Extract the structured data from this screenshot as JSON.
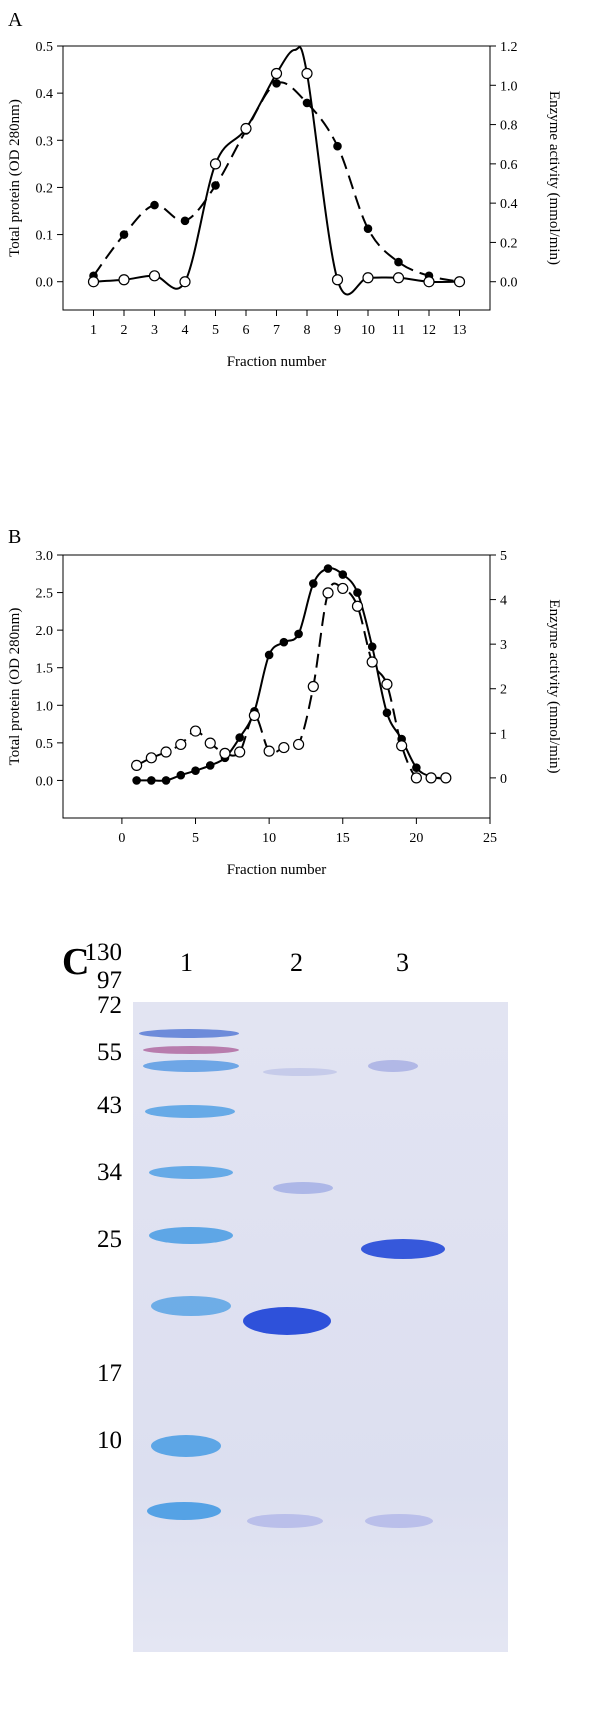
{
  "panel_a": {
    "label": "A",
    "chart_data": {
      "type": "line",
      "xlabel": "Fraction number",
      "ylabel": "Total protein (OD 280nm)",
      "ylabel_right": "Enzyme activity (mmol/min)",
      "xlim": [
        0,
        14
      ],
      "ylim": [
        -0.06,
        0.5
      ],
      "ylim_right": [
        -0.144,
        1.2
      ],
      "xticks": [
        1,
        2,
        3,
        4,
        5,
        6,
        7,
        8,
        9,
        10,
        11,
        12,
        13
      ],
      "yticks": [
        0.0,
        0.1,
        0.2,
        0.3,
        0.4,
        0.5
      ],
      "yticks_right": [
        0.0,
        0.2,
        0.4,
        0.6,
        0.8,
        1.0,
        1.2
      ],
      "grid": false,
      "series": [
        {
          "marker": "filled-circle",
          "line": "dashed",
          "axis": "right",
          "x": [
            1,
            2,
            3,
            4,
            5,
            6,
            7,
            8,
            9,
            10,
            11,
            12,
            13
          ],
          "y": [
            0.03,
            0.24,
            0.39,
            0.31,
            0.49,
            0.77,
            1.01,
            0.91,
            0.69,
            0.27,
            0.1,
            0.03,
            0.0
          ]
        },
        {
          "marker": "open-circle",
          "line": "solid",
          "axis": "right",
          "x": [
            1,
            2,
            3,
            4,
            5,
            6,
            7,
            8,
            9,
            10,
            11,
            12,
            13
          ],
          "y": [
            0.0,
            0.01,
            0.03,
            0.0,
            0.6,
            0.78,
            1.06,
            1.06,
            0.01,
            0.02,
            0.02,
            0.0,
            0.0
          ],
          "curve_peak": {
            "x": 7.6,
            "y": 1.18
          }
        }
      ]
    }
  },
  "panel_b": {
    "label": "B",
    "chart_data": {
      "type": "line",
      "xlabel": "Fraction number",
      "ylabel": "Total protein (OD 280nm)",
      "ylabel_right": "Enzyme activity (mmol/min)",
      "xlim": [
        -4,
        25
      ],
      "ylim": [
        -0.5,
        3.0
      ],
      "ylim_right": [
        -0.9,
        5
      ],
      "xticks": [
        0,
        5,
        10,
        15,
        20,
        25
      ],
      "yticks": [
        0.0,
        0.5,
        1.0,
        1.5,
        2.0,
        2.5,
        3.0
      ],
      "yticks_right": [
        0,
        1,
        2,
        3,
        4,
        5
      ],
      "grid": false,
      "series": [
        {
          "marker": "filled-circle",
          "line": "solid",
          "axis": "left",
          "x": [
            1,
            2,
            3,
            4,
            5,
            6,
            7,
            8,
            9,
            10,
            11,
            12,
            13,
            14,
            15,
            16,
            17,
            18,
            19,
            20,
            21,
            22
          ],
          "y": [
            0.0,
            0.0,
            0.0,
            0.07,
            0.13,
            0.2,
            0.3,
            0.57,
            0.92,
            1.67,
            1.84,
            1.95,
            2.62,
            2.82,
            2.74,
            2.5,
            1.78,
            0.9,
            0.55,
            0.17,
            0.05,
            0.02
          ]
        },
        {
          "marker": "open-circle",
          "line": "dashed",
          "axis": "right",
          "x": [
            1,
            2,
            3,
            4,
            5,
            6,
            7,
            8,
            9,
            10,
            11,
            12,
            13,
            14,
            15,
            16,
            17,
            18,
            19,
            20,
            21,
            22
          ],
          "y": [
            0.28,
            0.45,
            0.58,
            0.75,
            1.05,
            0.78,
            0.55,
            0.58,
            1.4,
            0.6,
            0.68,
            0.75,
            2.05,
            4.15,
            4.25,
            3.85,
            2.6,
            2.1,
            0.72,
            0.0,
            0.0,
            0.0
          ]
        }
      ]
    }
  },
  "panel_c": {
    "label": "C",
    "lanes": [
      "1",
      "2",
      "3"
    ],
    "marker_weights": [
      "130",
      "97",
      "72",
      "55",
      "43",
      "34",
      "25",
      "17",
      "10"
    ],
    "colors": {
      "marker_band": "#3d97e3",
      "sample_band": "#2449d8",
      "gel_background": "#e0e2f1"
    }
  }
}
